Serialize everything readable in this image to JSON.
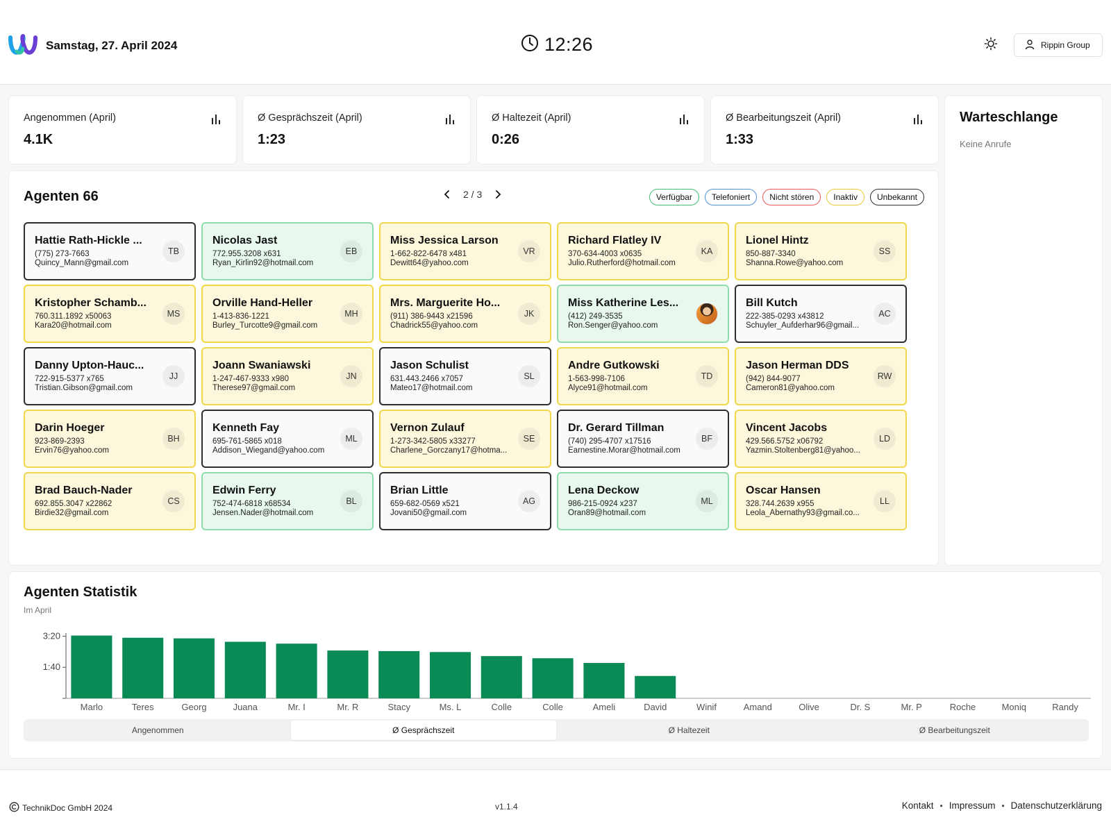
{
  "header": {
    "date": "Samstag, 27. April 2024",
    "time": "12:26",
    "user_label": "Rippin Group",
    "logo_icon": "webex-logo",
    "theme_icon": "sun-icon"
  },
  "kpis": [
    {
      "label": "Angenommen (April)",
      "value": "4.1K"
    },
    {
      "label": "Ø Gesprächszeit (April)",
      "value": "1:23"
    },
    {
      "label": "Ø Haltezeit (April)",
      "value": "0:26"
    },
    {
      "label": "Ø Bearbeitungszeit (April)",
      "value": "1:33"
    }
  ],
  "queue": {
    "title": "Warteschlange",
    "empty": "Keine Anrufe"
  },
  "agents": {
    "title": "Agenten 66",
    "page": "2 / 3",
    "legend": [
      {
        "label": "Verfügbar",
        "color": "#3fbf6f"
      },
      {
        "label": "Telefoniert",
        "color": "#4f8fd6"
      },
      {
        "label": "Nicht stören",
        "color": "#e05a5a"
      },
      {
        "label": "Inaktiv",
        "color": "#e8c93a"
      },
      {
        "label": "Unbekannt",
        "color": "#2d2d2d"
      }
    ],
    "list": [
      {
        "name": "Hattie Rath-Hickle ...",
        "phone": "(775) 273-7663",
        "email": "Quincy_Mann@gmail.com",
        "initials": "TB",
        "status": "unknown"
      },
      {
        "name": "Nicolas Jast",
        "phone": "772.955.3208 x631",
        "email": "Ryan_Kirlin92@hotmail.com",
        "initials": "EB",
        "status": "available"
      },
      {
        "name": "Miss Jessica Larson",
        "phone": "1-662-822-6478 x481",
        "email": "Dewitt64@yahoo.com",
        "initials": "VR",
        "status": "inactive"
      },
      {
        "name": "Richard Flatley IV",
        "phone": "370-634-4003 x0635",
        "email": "Julio.Rutherford@hotmail.com",
        "initials": "KA",
        "status": "inactive"
      },
      {
        "name": "Lionel Hintz",
        "phone": "850-887-3340",
        "email": "Shanna.Rowe@yahoo.com",
        "initials": "SS",
        "status": "inactive"
      },
      {
        "name": "Kristopher Schamb...",
        "phone": "760.311.1892 x50063",
        "email": "Kara20@hotmail.com",
        "initials": "MS",
        "status": "inactive"
      },
      {
        "name": "Orville Hand-Heller",
        "phone": "1-413-836-1221",
        "email": "Burley_Turcotte9@gmail.com",
        "initials": "MH",
        "status": "inactive"
      },
      {
        "name": "Mrs. Marguerite Ho...",
        "phone": "(911) 386-9443 x21596",
        "email": "Chadrick55@yahoo.com",
        "initials": "JK",
        "status": "inactive"
      },
      {
        "name": "Miss Katherine Les...",
        "phone": "(412) 249-3535",
        "email": "Ron.Senger@yahoo.com",
        "initials": "",
        "status": "available",
        "photo": true
      },
      {
        "name": "Bill Kutch",
        "phone": "222-385-0293 x43812",
        "email": "Schuyler_Aufderhar96@gmail...",
        "initials": "AC",
        "status": "unknown"
      },
      {
        "name": "Danny Upton-Hauc...",
        "phone": "722-915-5377 x765",
        "email": "Tristian.Gibson@gmail.com",
        "initials": "JJ",
        "status": "unknown"
      },
      {
        "name": "Joann Swaniawski",
        "phone": "1-247-467-9333 x980",
        "email": "Therese97@gmail.com",
        "initials": "JN",
        "status": "inactive"
      },
      {
        "name": "Jason Schulist",
        "phone": "631.443.2466 x7057",
        "email": "Mateo17@hotmail.com",
        "initials": "SL",
        "status": "unknown"
      },
      {
        "name": "Andre Gutkowski",
        "phone": "1-563-998-7106",
        "email": "Alyce91@hotmail.com",
        "initials": "TD",
        "status": "inactive"
      },
      {
        "name": "Jason Herman DDS",
        "phone": "(942) 844-9077",
        "email": "Cameron81@yahoo.com",
        "initials": "RW",
        "status": "inactive"
      },
      {
        "name": "Darin Hoeger",
        "phone": "923-869-2393",
        "email": "Ervin76@yahoo.com",
        "initials": "BH",
        "status": "inactive"
      },
      {
        "name": "Kenneth Fay",
        "phone": "695-761-5865 x018",
        "email": "Addison_Wiegand@yahoo.com",
        "initials": "ML",
        "status": "unknown"
      },
      {
        "name": "Vernon Zulauf",
        "phone": "1-273-342-5805 x33277",
        "email": "Charlene_Gorczany17@hotma...",
        "initials": "SE",
        "status": "inactive"
      },
      {
        "name": "Dr. Gerard Tillman",
        "phone": "(740) 295-4707 x17516",
        "email": "Earnestine.Morar@hotmail.com",
        "initials": "BF",
        "status": "unknown"
      },
      {
        "name": "Vincent Jacobs",
        "phone": "429.566.5752 x06792",
        "email": "Yazmin.Stoltenberg81@yahoo...",
        "initials": "LD",
        "status": "inactive"
      },
      {
        "name": "Brad Bauch-Nader",
        "phone": "692.855.3047 x22862",
        "email": "Birdie32@gmail.com",
        "initials": "CS",
        "status": "inactive"
      },
      {
        "name": "Edwin Ferry",
        "phone": "752-474-6818 x68534",
        "email": "Jensen.Nader@hotmail.com",
        "initials": "BL",
        "status": "available"
      },
      {
        "name": "Brian Little",
        "phone": "659-682-0569 x521",
        "email": "Jovani50@gmail.com",
        "initials": "AG",
        "status": "unknown"
      },
      {
        "name": "Lena Deckow",
        "phone": "986-215-0924 x237",
        "email": "Oran89@hotmail.com",
        "initials": "ML",
        "status": "available"
      },
      {
        "name": "Oscar Hansen",
        "phone": "328.744.2639 x955",
        "email": "Leola_Abernathy93@gmail.co...",
        "initials": "LL",
        "status": "inactive"
      }
    ]
  },
  "stats": {
    "title": "Agenten Statistik",
    "subtitle": "Im April",
    "tabs": [
      "Angenommen",
      "Ø Gesprächszeit",
      "Ø Haltezeit",
      "Ø Bearbeitungszeit"
    ],
    "active_tab": 1
  },
  "chart_data": {
    "type": "bar",
    "categories": [
      "Marlo",
      "Teres",
      "Georg",
      "Juana",
      "Mr. I",
      "Mr. R",
      "Stacy",
      "Ms. L",
      "Colle",
      "Colle",
      "Ameli",
      "David",
      "Winif",
      "Amand",
      "Olive",
      "Dr. S",
      "Mr. P",
      "Roche",
      "Moniq",
      "Randy"
    ],
    "values": [
      202,
      195,
      193,
      182,
      176,
      154,
      152,
      149,
      136,
      129,
      114,
      72,
      0,
      0,
      0,
      0,
      0,
      0,
      0,
      0
    ],
    "yticks": [
      {
        "value": 100,
        "label": "1:40"
      },
      {
        "value": 200,
        "label": "3:20"
      }
    ],
    "ylim": [
      0,
      210
    ],
    "color": "#0a8a55",
    "title": "",
    "xlabel": "",
    "ylabel": ""
  },
  "footer": {
    "copyright": "TechnikDoc GmbH 2024",
    "version": "v1.1.4",
    "links": [
      "Kontakt",
      "Impressum",
      "Datenschutzerklärung"
    ]
  }
}
